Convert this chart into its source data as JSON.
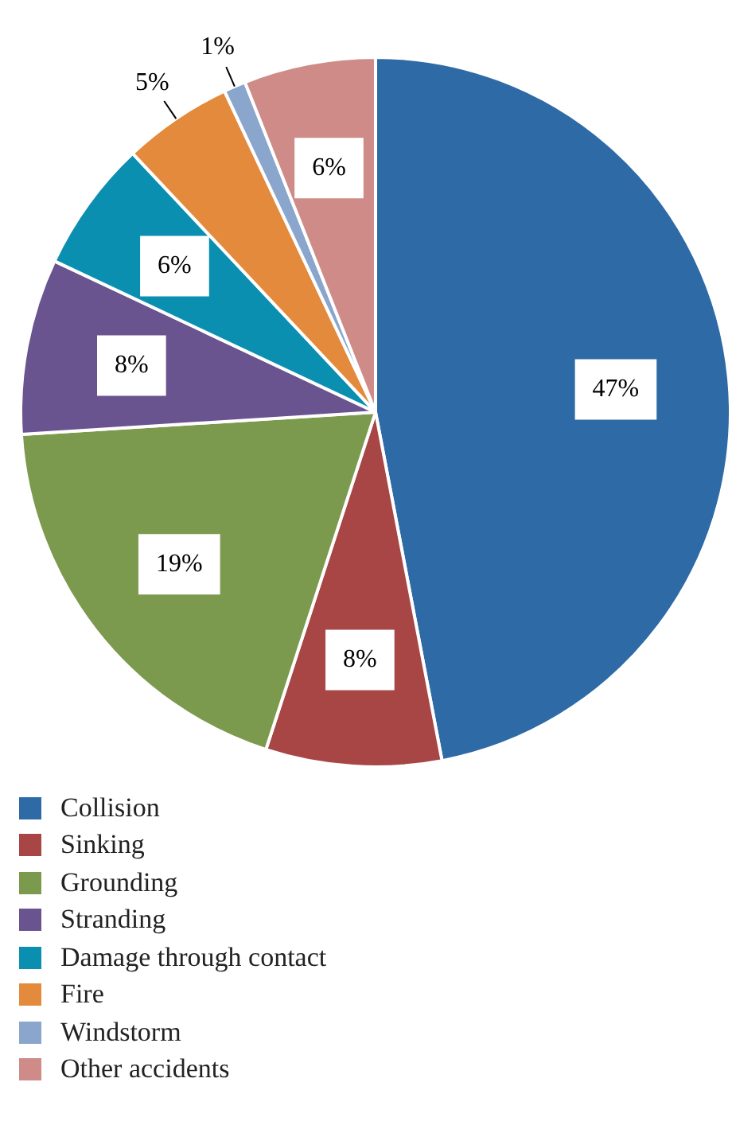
{
  "chart_data": {
    "type": "pie",
    "categories": [
      "Collision",
      "Sinking",
      "Grounding",
      "Stranding",
      "Damage through contact",
      "Fire",
      "Windstorm",
      "Other accidents"
    ],
    "values": [
      47,
      8,
      19,
      8,
      6,
      5,
      1,
      6
    ],
    "value_labels": [
      "47%",
      "8%",
      "19%",
      "8%",
      "6%",
      "5%",
      "1%",
      "6%"
    ],
    "colors": [
      "#2e6aa6",
      "#a84545",
      "#7c9a4e",
      "#6a5490",
      "#0b8fb0",
      "#e48a3c",
      "#8aa6cc",
      "#cf8b87"
    ],
    "legend": "bottom"
  }
}
